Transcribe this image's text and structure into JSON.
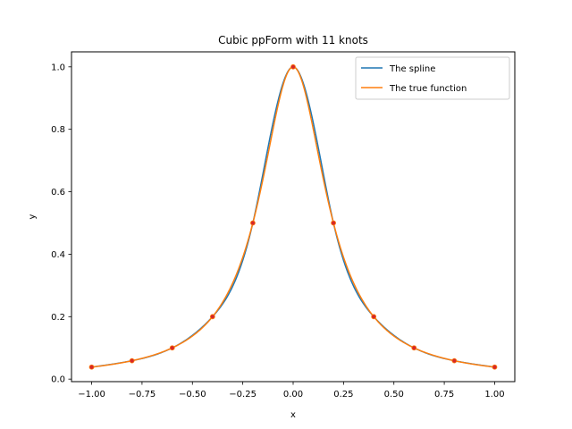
{
  "chart_data": {
    "type": "line",
    "title": "Cubic ppForm with 11 knots",
    "xlabel": "x",
    "ylabel": "y",
    "xlim": [
      -1.1,
      1.1
    ],
    "ylim": [
      -0.0081,
      1.0481
    ],
    "xticks": [
      -1.0,
      -0.75,
      -0.5,
      -0.25,
      0.0,
      0.25,
      0.5,
      0.75,
      1.0
    ],
    "xtick_labels": [
      "−1.00",
      "−0.75",
      "−0.50",
      "−0.25",
      "0.00",
      "0.25",
      "0.50",
      "0.75",
      "1.00"
    ],
    "yticks": [
      0.0,
      0.2,
      0.4,
      0.6,
      0.8,
      1.0
    ],
    "ytick_labels": [
      "0.0",
      "0.2",
      "0.4",
      "0.6",
      "0.8",
      "1.0"
    ],
    "grid": false,
    "legend_position": "top-right",
    "colors": {
      "spline": "#1f77b4",
      "true": "#ff7f0e",
      "knots": "#d62728"
    },
    "series": [
      {
        "name": "The spline",
        "color": "#1f77b4",
        "function": "cubic spline through knots"
      },
      {
        "name": "The true function",
        "color": "#ff7f0e",
        "function": "1/(1+25x^2)"
      }
    ],
    "knots": {
      "x": [
        -1.0,
        -0.8,
        -0.6,
        -0.4,
        -0.2,
        0.0,
        0.2,
        0.4,
        0.6,
        0.8,
        1.0
      ],
      "y": [
        0.0385,
        0.0588,
        0.1,
        0.2,
        0.5,
        1.0,
        0.5,
        0.2,
        0.1,
        0.0588,
        0.0385
      ]
    }
  }
}
